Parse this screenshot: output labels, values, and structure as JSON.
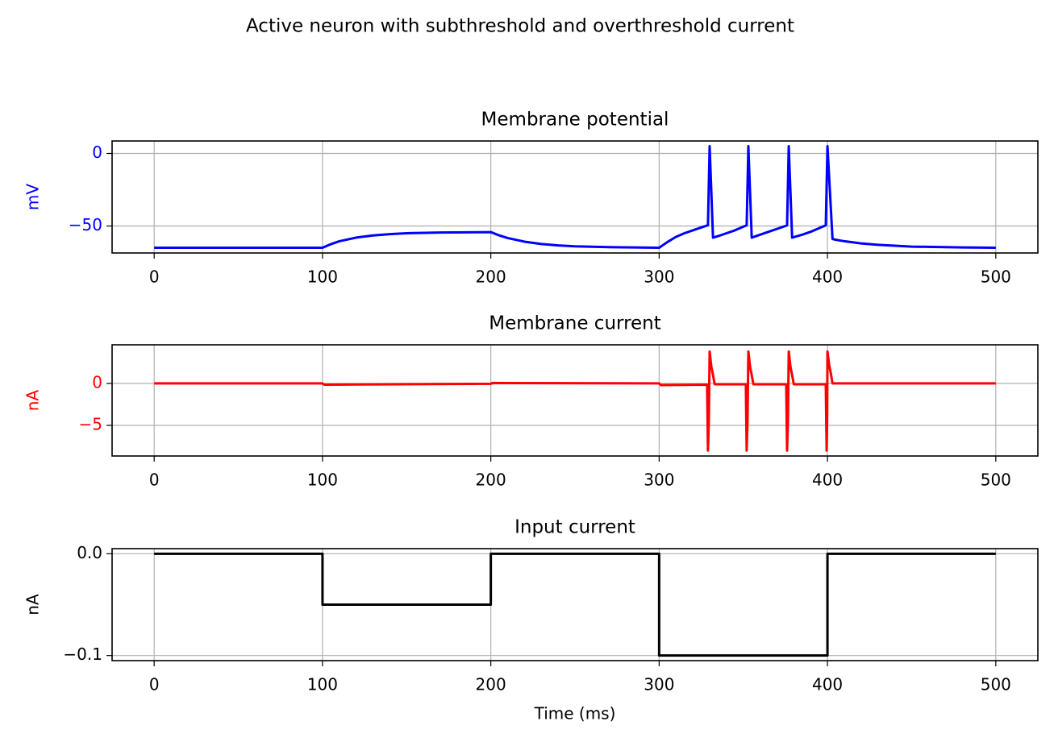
{
  "title": "Active neuron with subthreshold and overthreshold current",
  "chart_data": [
    {
      "type": "line",
      "title": "Membrane potential",
      "ylabel": "mV",
      "color": "#0000ff",
      "grid": true,
      "xlim": [
        -25,
        525
      ],
      "xticks": [
        0,
        100,
        200,
        300,
        400,
        500
      ],
      "ylim": [
        -68.6,
        8.6
      ],
      "yticks": [
        0,
        {
          "value": -50,
          "label": "−50"
        }
      ],
      "x": [
        0,
        100,
        105,
        110,
        120,
        130,
        140,
        150,
        170,
        200,
        205,
        210,
        220,
        230,
        240,
        250,
        270,
        300,
        305,
        310,
        315,
        320,
        325,
        329,
        330,
        332,
        335,
        340,
        345,
        350,
        352,
        353,
        355,
        360,
        365,
        370,
        375,
        376,
        377,
        379,
        385,
        390,
        395,
        399,
        400,
        403,
        405,
        410,
        420,
        430,
        450,
        480,
        500
      ],
      "values": [
        -65,
        -65,
        -62.5,
        -60.5,
        -58,
        -56.5,
        -55.6,
        -55,
        -54.5,
        -54.2,
        -56.5,
        -58.3,
        -60.8,
        -62.4,
        -63.4,
        -64,
        -64.6,
        -65,
        -61,
        -57.5,
        -55,
        -53,
        -51,
        -49.5,
        5,
        -58,
        -57,
        -55,
        -53,
        -50.5,
        -49.5,
        5,
        -58,
        -56,
        -54,
        -52,
        -50,
        -49.5,
        5,
        -58,
        -56,
        -54,
        -51.5,
        -49.5,
        5,
        -59,
        -59.5,
        -60.5,
        -62,
        -63,
        -64.2,
        -64.8,
        -65
      ]
    },
    {
      "type": "line",
      "title": "Membrane current",
      "ylabel": "nA",
      "color": "#ff0000",
      "grid": true,
      "xlim": [
        -25,
        525
      ],
      "xticks": [
        0,
        100,
        200,
        300,
        400,
        500
      ],
      "ylim": [
        -8.65,
        4.6
      ],
      "yticks": [
        0,
        {
          "value": -5,
          "label": "−5"
        }
      ],
      "x": [
        0,
        100,
        101,
        200,
        201,
        300,
        301,
        328.5,
        329,
        329.5,
        330,
        331,
        332,
        333,
        351.5,
        352,
        352.5,
        353,
        354,
        355,
        356,
        375.5,
        376,
        376.5,
        377,
        378,
        379,
        380,
        399,
        399.5,
        399.8,
        400,
        401,
        402,
        403,
        500
      ],
      "values": [
        0,
        0,
        -0.15,
        -0.05,
        0.05,
        0,
        -0.2,
        -0.15,
        -8,
        -4.5,
        3.8,
        2,
        1,
        -0.1,
        -0.1,
        -8,
        -4.5,
        3.8,
        2,
        1,
        -0.1,
        -0.1,
        -8,
        -4.5,
        3.8,
        2,
        1,
        -0.1,
        -0.1,
        -8,
        -4.5,
        3.8,
        2.2,
        1.2,
        0,
        0
      ]
    },
    {
      "type": "line",
      "title": "Input current",
      "ylabel": "nA",
      "xlabel": "Time (ms)",
      "color": "#000000",
      "grid": true,
      "xlim": [
        -25,
        525
      ],
      "xticks": [
        0,
        100,
        200,
        300,
        400,
        500
      ],
      "ylim": [
        -0.105,
        0.005
      ],
      "yticks": [
        {
          "value": 0,
          "label": "0.0"
        },
        {
          "value": -0.1,
          "label": "−0.1"
        }
      ],
      "x": [
        0,
        100,
        100,
        200,
        200,
        300,
        300,
        400,
        400,
        500
      ],
      "values": [
        0,
        0,
        -0.05,
        -0.05,
        0,
        0,
        -0.1,
        -0.1,
        0,
        0
      ]
    }
  ]
}
